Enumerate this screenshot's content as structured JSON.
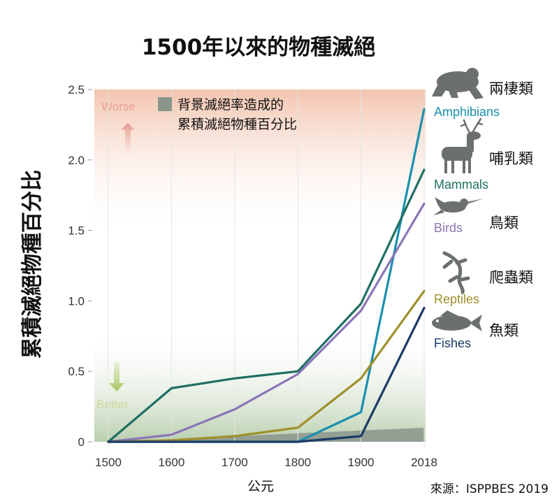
{
  "chart_data": {
    "type": "line",
    "title": "1500年以來的物種滅絕",
    "ylabel": "累積滅絕物種百分比",
    "xlabel": "公元",
    "source": "來源：ISPPBES 2019",
    "categories": [
      "1500",
      "1600",
      "1700",
      "1800",
      "1900",
      "2018"
    ],
    "y_ticks": [
      "0",
      "0.5",
      "1.0",
      "1.5",
      "2.0",
      "2.5"
    ],
    "ylim": [
      0,
      2.5
    ],
    "zones": {
      "worse": "Worse",
      "better": "Better"
    },
    "legend": {
      "label_line1": "背景滅絕率造成的",
      "label_line2": "累積滅絕物種百分比"
    },
    "background_series": {
      "name": "背景滅絕率造成的累積滅絕物種百分比",
      "values": [
        0,
        0.02,
        0.04,
        0.06,
        0.08,
        0.1
      ]
    },
    "series": [
      {
        "name": "Amphibians",
        "name_zh": "兩棲類",
        "color": "#1a8fae",
        "icon": "frog-icon",
        "values": [
          0,
          0,
          0,
          0,
          0.21,
          2.36
        ]
      },
      {
        "name": "Mammals",
        "name_zh": "哺乳類",
        "color": "#1f6f62",
        "icon": "deer-icon",
        "values": [
          0,
          0.38,
          0.45,
          0.5,
          0.98,
          1.93
        ]
      },
      {
        "name": "Birds",
        "name_zh": "鳥類",
        "color": "#8a76b8",
        "icon": "bird-icon",
        "values": [
          0,
          0.05,
          0.23,
          0.48,
          0.93,
          1.69
        ]
      },
      {
        "name": "Reptiles",
        "name_zh": "爬蟲類",
        "color": "#a08f2c",
        "icon": "lizard-icon",
        "values": [
          0,
          0.01,
          0.04,
          0.1,
          0.45,
          1.07
        ]
      },
      {
        "name": "Fishes",
        "name_zh": "魚類",
        "color": "#1c3a66",
        "icon": "fish-icon",
        "values": [
          0,
          0,
          0,
          0,
          0.04,
          0.95
        ]
      }
    ]
  }
}
